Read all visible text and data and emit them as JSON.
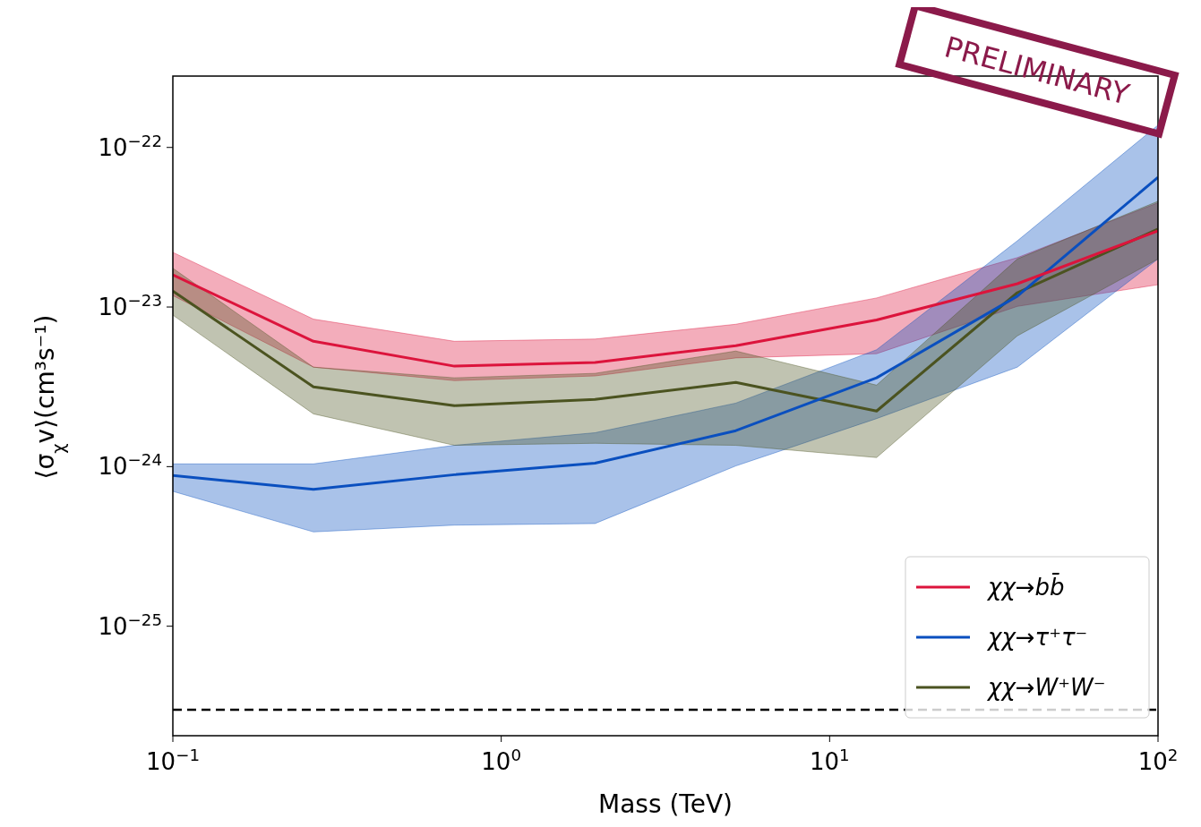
{
  "chart_data": {
    "type": "line",
    "xlabel": "Mass (TeV)",
    "ylabel": "⟨σ$_{χ}$v⟩(cm³s⁻¹)",
    "log": "xy",
    "x": [
      0.1,
      0.268,
      0.72,
      1.93,
      5.18,
      13.9,
      37.3,
      100
    ],
    "xlim": [
      0.1,
      100
    ],
    "ylim": [
      2.06e-26,
      2.8e-22
    ],
    "xticks": [
      {
        "value": 0.1,
        "label": "10$^{−1}$"
      },
      {
        "value": 1,
        "label": "10$^{0}$"
      },
      {
        "value": 10,
        "label": "10$^{1}$"
      },
      {
        "value": 100,
        "label": "10$^{2}$"
      }
    ],
    "yticks": [
      {
        "value": 1e-25,
        "label": "10$^{−25}$"
      },
      {
        "value": 1e-24,
        "label": "10$^{−24}$"
      },
      {
        "value": 1e-23,
        "label": "10$^{−23}$"
      },
      {
        "value": 1e-22,
        "label": "10$^{−22}$"
      }
    ],
    "series": [
      {
        "name": "χχ→bb̄",
        "color": "#dc143c",
        "values": [
          1.59e-23,
          6.1e-24,
          4.26e-24,
          4.49e-24,
          5.73e-24,
          8.3e-24,
          1.4e-23,
          3e-23
        ],
        "upper": [
          2.2e-23,
          8.4e-24,
          6.1e-24,
          6.3e-24,
          7.8e-24,
          1.14e-23,
          2.04e-23,
          4.5e-23
        ],
        "lower": [
          1.18e-23,
          4.2e-24,
          3.46e-24,
          3.7e-24,
          4.8e-24,
          5.1e-24,
          1.01e-23,
          1.38e-23
        ]
      },
      {
        "name": "χχ→τ⁺τ⁻",
        "color": "#0a4fbf",
        "values": [
          8.8e-25,
          7.2e-25,
          8.9e-25,
          1.05e-24,
          1.68e-24,
          3.6e-24,
          1.17e-23,
          6.5e-23
        ],
        "upper": [
          1.04e-24,
          1.04e-24,
          1.36e-24,
          1.63e-24,
          2.5e-24,
          5.4e-24,
          2.6e-23,
          1.38e-22
        ],
        "lower": [
          7e-25,
          3.9e-25,
          4.3e-25,
          4.4e-25,
          1.01e-24,
          2e-24,
          4.2e-24,
          2e-23
        ]
      },
      {
        "name": "χχ→W⁺W⁻",
        "color": "#4b5320",
        "values": [
          1.26e-23,
          3.16e-24,
          2.41e-24,
          2.64e-24,
          3.37e-24,
          2.23e-24,
          1.23e-23,
          3.08e-23
        ],
        "upper": [
          1.75e-23,
          4.2e-24,
          3.6e-24,
          3.84e-24,
          5.3e-24,
          3.24e-24,
          2e-23,
          4.6e-23
        ],
        "lower": [
          8.9e-24,
          2.14e-24,
          1.36e-24,
          1.4e-24,
          1.36e-24,
          1.14e-24,
          6.6e-24,
          2e-23
        ]
      }
    ],
    "ref_lines": [
      {
        "axis": "y",
        "value": 3e-26,
        "color": "#000000",
        "line_style": "dashed"
      }
    ],
    "legend": "bottom right",
    "grid": false,
    "annotations": [
      "PRELIMINARY"
    ]
  }
}
